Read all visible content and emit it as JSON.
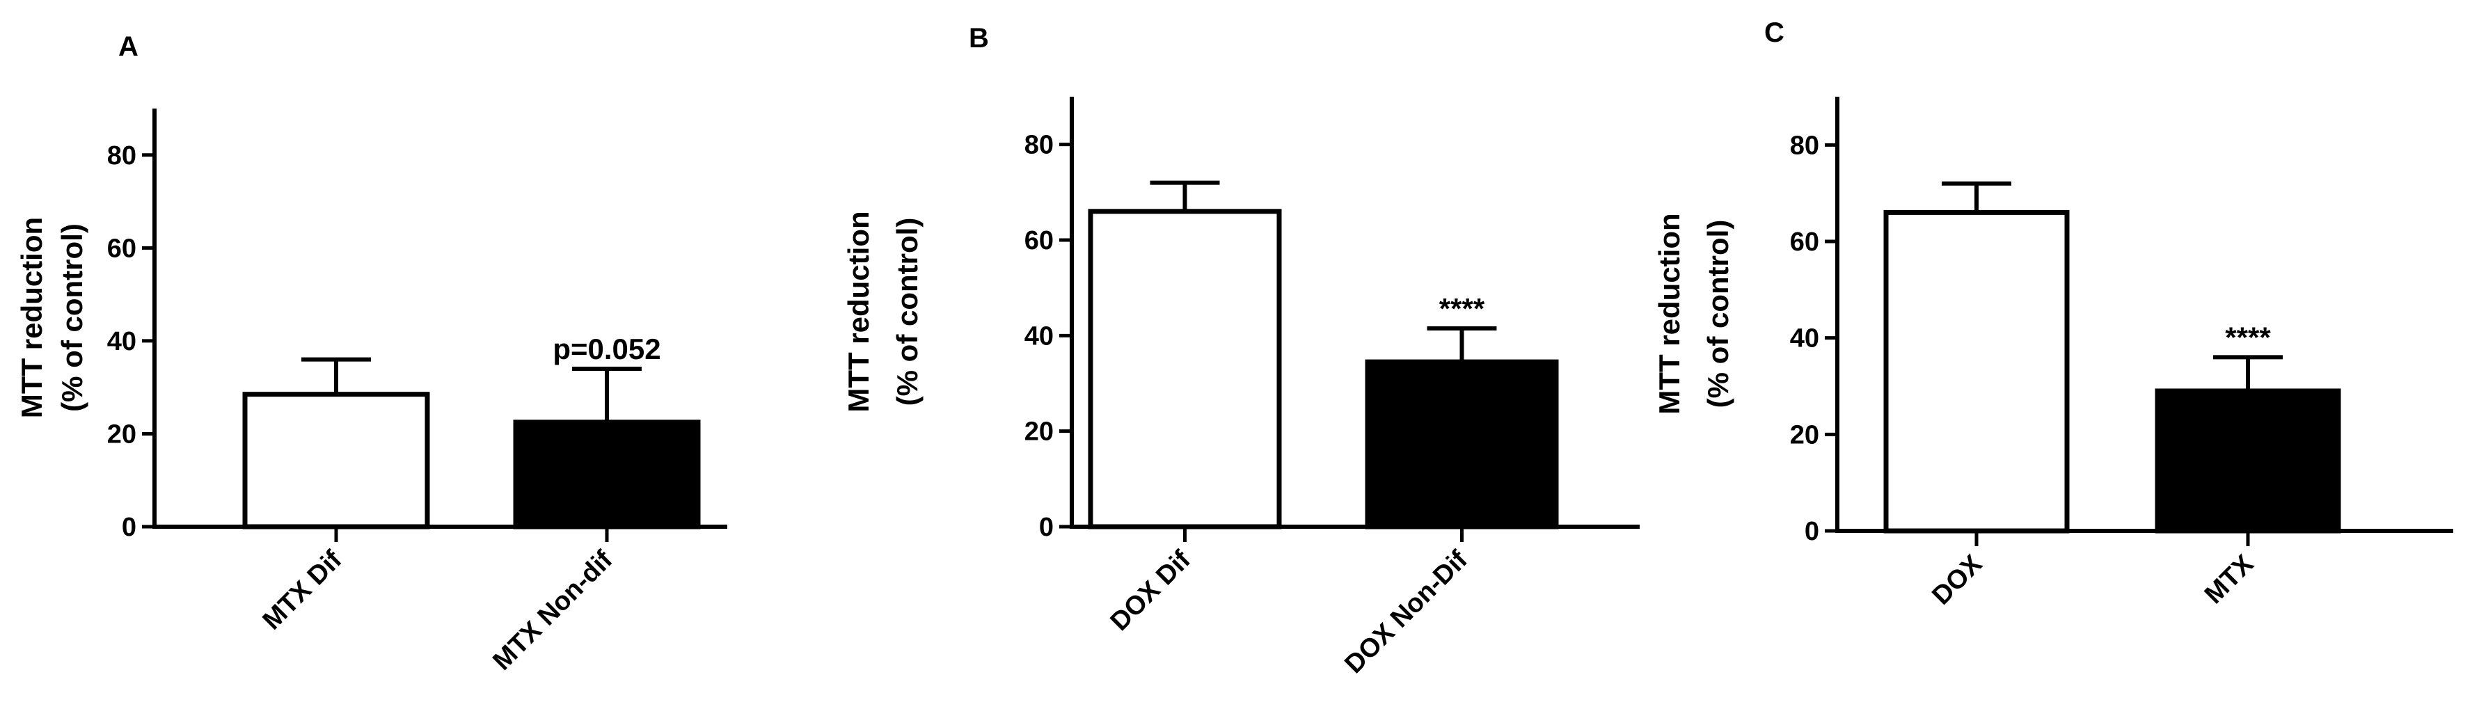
{
  "chart_data": [
    {
      "type": "bar",
      "panel_label": "A",
      "ylabel_line1": "MTT reduction",
      "ylabel_line2": "(% of control)",
      "ylim": [
        0,
        90
      ],
      "yticks": [
        0,
        20,
        40,
        60,
        80
      ],
      "categories": [
        "MTX Dif",
        "MTX Non-dif"
      ],
      "values": [
        28.5,
        22.5
      ],
      "errors": [
        7.5,
        11.5
      ],
      "fills": [
        "#ffffff",
        "#000000"
      ],
      "annotations": [
        "",
        "p=0.052"
      ]
    },
    {
      "type": "bar",
      "panel_label": "B",
      "ylabel_line1": "MTT reduction",
      "ylabel_line2": "(% of control)",
      "ylim": [
        0,
        90
      ],
      "yticks": [
        0,
        20,
        40,
        60,
        80
      ],
      "categories": [
        "DOX Dif",
        "DOX Non-Dif"
      ],
      "values": [
        66,
        34.5
      ],
      "errors": [
        6,
        7
      ],
      "fills": [
        "#ffffff",
        "#000000"
      ],
      "annotations": [
        "",
        "****"
      ]
    },
    {
      "type": "bar",
      "panel_label": "C",
      "ylabel_line1": "MTT reduction",
      "ylabel_line2": "(% of control)",
      "ylim": [
        0,
        90
      ],
      "yticks": [
        0,
        20,
        40,
        60,
        80
      ],
      "categories": [
        "DOX",
        "MTX"
      ],
      "values": [
        66,
        29
      ],
      "errors": [
        6,
        7
      ],
      "fills": [
        "#ffffff",
        "#000000"
      ],
      "annotations": [
        "",
        "****"
      ]
    }
  ]
}
